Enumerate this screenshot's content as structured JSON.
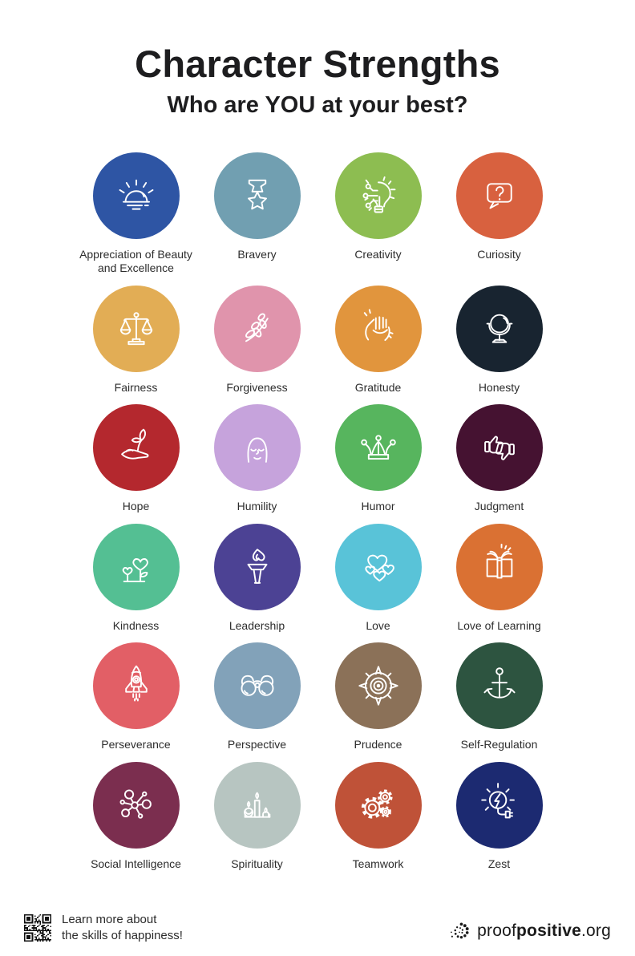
{
  "header": {
    "title": "Character Strengths",
    "subtitle": "Who are YOU at your best?"
  },
  "strengths": [
    {
      "label": "Appreciation of Beauty and Excellence",
      "color": "#2e55a4",
      "icon": "sunrise-icon"
    },
    {
      "label": "Bravery",
      "color": "#719fb1",
      "icon": "medal-icon"
    },
    {
      "label": "Creativity",
      "color": "#8dbd51",
      "icon": "lightbulb-circuit-icon"
    },
    {
      "label": "Curiosity",
      "color": "#d8613f",
      "icon": "question-bubble-icon"
    },
    {
      "label": "Fairness",
      "color": "#e2ad55",
      "icon": "balance-scales-icon"
    },
    {
      "label": "Forgiveness",
      "color": "#e094ac",
      "icon": "olive-branch-icon"
    },
    {
      "label": "Gratitude",
      "color": "#e1953d",
      "icon": "clasped-hands-icon"
    },
    {
      "label": "Honesty",
      "color": "#182430",
      "icon": "mirror-icon"
    },
    {
      "label": "Hope",
      "color": "#b4282e",
      "icon": "hand-sprout-icon"
    },
    {
      "label": "Humility",
      "color": "#c6a3dc",
      "icon": "calm-face-icon"
    },
    {
      "label": "Humor",
      "color": "#57b55e",
      "icon": "jester-hat-icon"
    },
    {
      "label": "Judgment",
      "color": "#451231",
      "icon": "thumbs-up-down-icon"
    },
    {
      "label": "Kindness",
      "color": "#54bf93",
      "icon": "heart-flowers-icon"
    },
    {
      "label": "Leadership",
      "color": "#4c4294",
      "icon": "torch-icon"
    },
    {
      "label": "Love",
      "color": "#59c3d8",
      "icon": "hearts-icon"
    },
    {
      "label": "Love of Learning",
      "color": "#da7133",
      "icon": "open-book-icon"
    },
    {
      "label": "Perseverance",
      "color": "#e25f66",
      "icon": "rocket-icon"
    },
    {
      "label": "Perspective",
      "color": "#82a2b9",
      "icon": "binoculars-icon"
    },
    {
      "label": "Prudence",
      "color": "#8b7158",
      "icon": "compass-icon"
    },
    {
      "label": "Self-Regulation",
      "color": "#2d5440",
      "icon": "anchor-icon"
    },
    {
      "label": "Social Intelligence",
      "color": "#7b2e4f",
      "icon": "network-icon"
    },
    {
      "label": "Spirituality",
      "color": "#b7c5c1",
      "icon": "candles-icon"
    },
    {
      "label": "Teamwork",
      "color": "#bf5238",
      "icon": "gears-icon"
    },
    {
      "label": "Zest",
      "color": "#1c2a71",
      "icon": "energy-plug-icon"
    }
  ],
  "footer": {
    "note_line1": "Learn more about",
    "note_line2": "the skills of happiness!",
    "brand_prefix": "proof",
    "brand_bold": "positive",
    "brand_suffix": ".org"
  },
  "colors": {
    "background": "#ffffff",
    "icon_stroke": "#ffffff",
    "text": "#2d2d2d",
    "heading": "#1d1d1f"
  }
}
